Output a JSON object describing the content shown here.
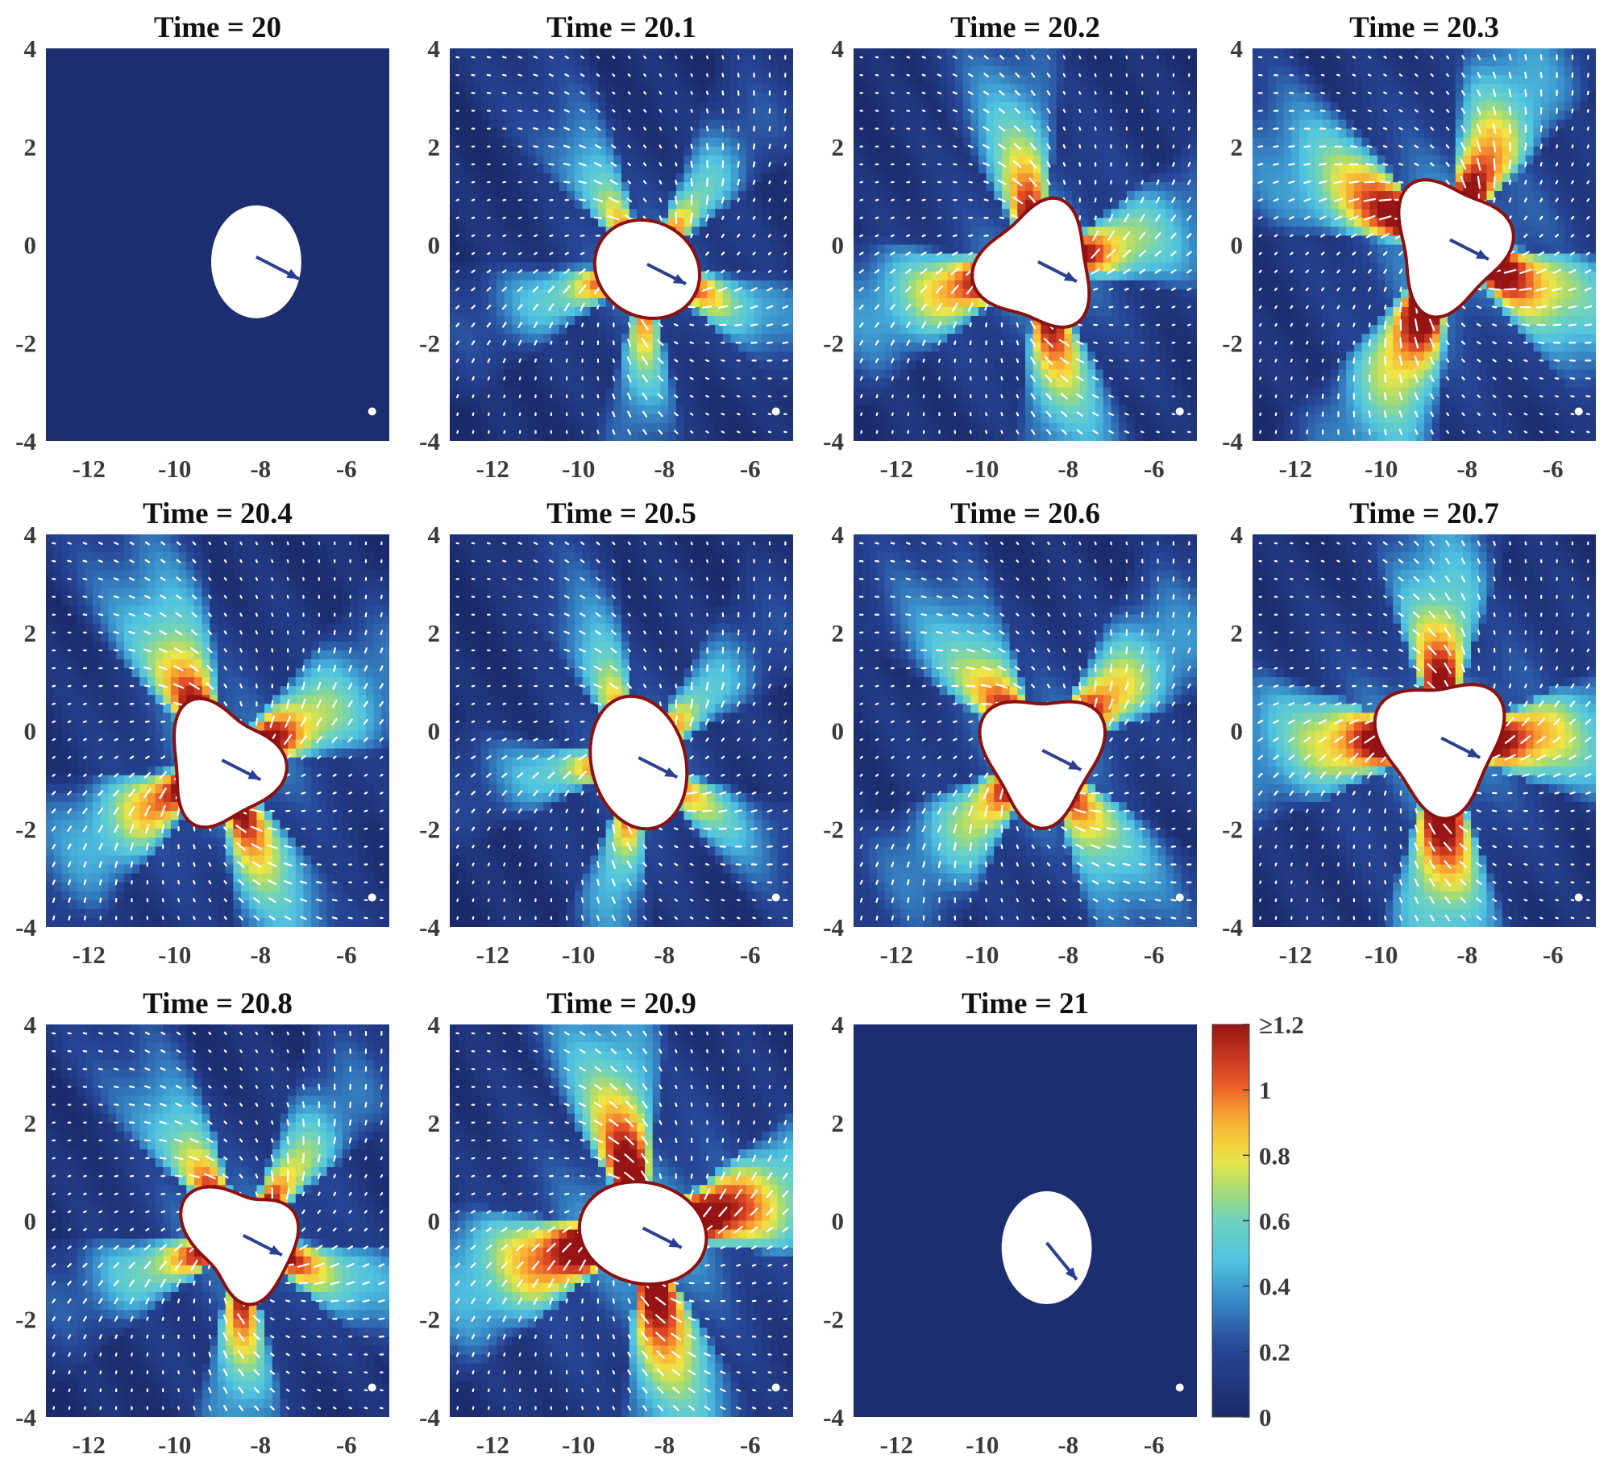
{
  "chart_data": {
    "type": "heatmap",
    "description_units": "x and y in domain units; color = speed magnitude",
    "xlim": [
      -13,
      -5
    ],
    "ylim": [
      -4,
      4
    ],
    "x_ticks": [
      -12,
      -10,
      -8,
      -6
    ],
    "y_ticks": [
      -4,
      -2,
      0,
      2,
      4
    ],
    "x_tick_labels": [
      "-12",
      "-10",
      "-8",
      "-6"
    ],
    "y_tick_labels": [
      "-4",
      "-2",
      "0",
      "2",
      "4"
    ],
    "colorbar": {
      "min": 0,
      "max": 1.2,
      "ticks": [
        0,
        0.2,
        0.4,
        0.6,
        0.8,
        1,
        1.2
      ],
      "tick_labels": [
        "0",
        "0.2",
        "0.4",
        "0.6",
        "0.8",
        "1",
        "≥1.2"
      ]
    },
    "panels": [
      {
        "title": "Time = 20",
        "cx": -8.1,
        "cy": -0.35,
        "rx": 1.05,
        "ry": 1.15,
        "shape": "ellipse",
        "angle": 0,
        "lobes": 0,
        "intensity": 0.0,
        "arrow": [
          1.0,
          -0.45
        ]
      },
      {
        "title": "Time = 20.1",
        "cx": -8.4,
        "cy": -0.5,
        "rx": 1.2,
        "ry": 0.95,
        "shape": "ellipse",
        "angle": -15,
        "lobes": 5,
        "intensity": 0.85,
        "arrow": [
          0.9,
          -0.4
        ]
      },
      {
        "title": "Time = 20.2",
        "cx": -8.7,
        "cy": -0.45,
        "rx": 1.35,
        "ry": 1.25,
        "shape": "triangle",
        "angle": 10,
        "lobes": 4,
        "intensity": 1.05,
        "arrow": [
          0.9,
          -0.4
        ]
      },
      {
        "title": "Time = 20.3",
        "cx": -8.4,
        "cy": 0.0,
        "rx": 1.3,
        "ry": 1.35,
        "shape": "triangle",
        "angle": 190,
        "lobes": 4,
        "intensity": 1.25,
        "arrow": [
          0.9,
          -0.4
        ]
      },
      {
        "title": "Time = 20.4",
        "cx": -8.9,
        "cy": -0.7,
        "rx": 1.2,
        "ry": 1.35,
        "shape": "triangle",
        "angle": 60,
        "lobes": 4,
        "intensity": 1.1,
        "arrow": [
          0.9,
          -0.4
        ]
      },
      {
        "title": "Time = 20.5",
        "cx": -8.6,
        "cy": -0.65,
        "rx": 1.05,
        "ry": 1.35,
        "shape": "ellipse",
        "angle": 20,
        "lobes": 5,
        "intensity": 0.8,
        "arrow": [
          0.9,
          -0.4
        ]
      },
      {
        "title": "Time = 20.6",
        "cx": -8.6,
        "cy": -0.5,
        "rx": 1.3,
        "ry": 1.4,
        "shape": "triangle",
        "angle": 90,
        "lobes": 4,
        "intensity": 1.0,
        "arrow": [
          0.9,
          -0.4
        ]
      },
      {
        "title": "Time = 20.7",
        "cx": -8.6,
        "cy": -0.25,
        "rx": 1.35,
        "ry": 1.45,
        "shape": "triangle",
        "angle": 95,
        "lobes": 4,
        "intensity": 1.2,
        "arrow": [
          0.9,
          -0.4
        ]
      },
      {
        "title": "Time = 20.8",
        "cx": -8.4,
        "cy": -0.4,
        "rx": 1.4,
        "ry": 1.0,
        "shape": "triangle",
        "angle": -30,
        "lobes": 5,
        "intensity": 1.0,
        "arrow": [
          0.9,
          -0.4
        ]
      },
      {
        "title": "Time = 20.9",
        "cx": -8.5,
        "cy": -0.25,
        "rx": 1.45,
        "ry": 1.0,
        "shape": "ellipse",
        "angle": -8,
        "lobes": 4,
        "intensity": 1.35,
        "arrow": [
          0.9,
          -0.4
        ]
      },
      {
        "title": "Time = 21",
        "cx": -8.5,
        "cy": -0.55,
        "rx": 1.05,
        "ry": 1.15,
        "shape": "ellipse",
        "angle": 0,
        "lobes": 0,
        "intensity": 0.0,
        "arrow": [
          0.7,
          -0.75
        ]
      }
    ],
    "colors": {
      "background": "#1b2a6b",
      "arrow": "#2a3f8f",
      "quiver": "#ffffff"
    }
  }
}
